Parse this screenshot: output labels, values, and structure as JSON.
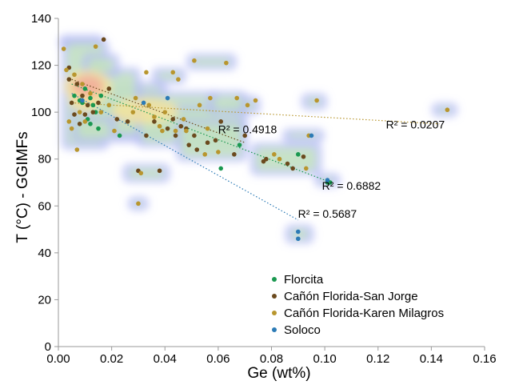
{
  "chart_data": {
    "type": "scatter",
    "title": "",
    "xlabel": "Ge (wt%)",
    "ylabel": "T (°C) - GGIMFs",
    "xlim": [
      0,
      0.16
    ],
    "ylim": [
      0,
      140
    ],
    "xticks": [
      0,
      0.02,
      0.04,
      0.06,
      0.08,
      0.1,
      0.12,
      0.14,
      0.16
    ],
    "xtick_labels": [
      "0.00",
      "0.02",
      "0.04",
      "0.06",
      "0.08",
      "0.10",
      "0.12",
      "0.14",
      "0.16"
    ],
    "yticks": [
      0,
      20,
      40,
      60,
      80,
      100,
      120,
      140
    ],
    "ytick_labels": [
      "0",
      "20",
      "40",
      "60",
      "80",
      "100",
      "120",
      "140"
    ],
    "grid": false,
    "legend_position": "bottom-right",
    "series": [
      {
        "name": "Florcita",
        "color": "#1a9850",
        "points": [
          [
            0.006,
            107
          ],
          [
            0.008,
            105
          ],
          [
            0.009,
            104
          ],
          [
            0.01,
            110
          ],
          [
            0.011,
            97
          ],
          [
            0.012,
            95
          ],
          [
            0.012,
            106
          ],
          [
            0.013,
            103
          ],
          [
            0.014,
            100
          ],
          [
            0.015,
            93
          ],
          [
            0.016,
            107
          ],
          [
            0.023,
            90
          ],
          [
            0.061,
            76
          ],
          [
            0.068,
            86
          ],
          [
            0.09,
            82
          ],
          [
            0.101,
            70
          ],
          [
            0.102,
            70
          ]
        ]
      },
      {
        "name": "Cañón Florida-San Jorge",
        "color": "#6b4a1e",
        "points": [
          [
            0.004,
            119
          ],
          [
            0.004,
            114
          ],
          [
            0.005,
            104
          ],
          [
            0.006,
            99
          ],
          [
            0.007,
            112
          ],
          [
            0.008,
            95
          ],
          [
            0.009,
            107
          ],
          [
            0.01,
            99
          ],
          [
            0.011,
            103
          ],
          [
            0.013,
            100
          ],
          [
            0.015,
            104
          ],
          [
            0.017,
            131
          ],
          [
            0.019,
            110
          ],
          [
            0.022,
            97
          ],
          [
            0.026,
            96
          ],
          [
            0.03,
            75
          ],
          [
            0.033,
            90
          ],
          [
            0.036,
            96
          ],
          [
            0.038,
            75
          ],
          [
            0.041,
            93
          ],
          [
            0.043,
            97
          ],
          [
            0.044,
            90
          ],
          [
            0.046,
            94
          ],
          [
            0.048,
            93
          ],
          [
            0.049,
            86
          ],
          [
            0.051,
            90
          ],
          [
            0.052,
            84
          ],
          [
            0.056,
            87
          ],
          [
            0.059,
            88
          ],
          [
            0.061,
            96
          ],
          [
            0.066,
            82
          ],
          [
            0.07,
            90
          ],
          [
            0.077,
            79
          ],
          [
            0.078,
            80
          ],
          [
            0.086,
            78
          ],
          [
            0.088,
            76
          ],
          [
            0.092,
            81
          ]
        ]
      },
      {
        "name": "Cañón Florida-Karen Milagros",
        "color": "#b8962e",
        "points": [
          [
            0.002,
            127
          ],
          [
            0.003,
            118
          ],
          [
            0.004,
            96
          ],
          [
            0.005,
            93
          ],
          [
            0.006,
            116
          ],
          [
            0.007,
            84
          ],
          [
            0.008,
            100
          ],
          [
            0.009,
            112
          ],
          [
            0.01,
            96
          ],
          [
            0.012,
            108
          ],
          [
            0.014,
            128
          ],
          [
            0.016,
            100
          ],
          [
            0.019,
            103
          ],
          [
            0.021,
            92
          ],
          [
            0.028,
            100
          ],
          [
            0.029,
            106
          ],
          [
            0.03,
            61
          ],
          [
            0.031,
            74
          ],
          [
            0.033,
            117
          ],
          [
            0.034,
            103
          ],
          [
            0.036,
            98
          ],
          [
            0.038,
            94
          ],
          [
            0.039,
            92
          ],
          [
            0.04,
            100
          ],
          [
            0.043,
            117
          ],
          [
            0.044,
            92
          ],
          [
            0.045,
            114
          ],
          [
            0.047,
            97
          ],
          [
            0.048,
            92
          ],
          [
            0.051,
            122
          ],
          [
            0.053,
            103
          ],
          [
            0.055,
            82
          ],
          [
            0.056,
            93
          ],
          [
            0.057,
            106
          ],
          [
            0.06,
            83
          ],
          [
            0.063,
            121
          ],
          [
            0.067,
            106
          ],
          [
            0.071,
            103
          ],
          [
            0.074,
            105
          ],
          [
            0.081,
            82
          ],
          [
            0.083,
            80
          ],
          [
            0.093,
            76
          ],
          [
            0.094,
            90
          ],
          [
            0.097,
            105
          ],
          [
            0.146,
            101
          ]
        ]
      },
      {
        "name": "Soloco",
        "color": "#2c7bb6",
        "points": [
          [
            0.009,
            105
          ],
          [
            0.032,
            104
          ],
          [
            0.041,
            106
          ],
          [
            0.09,
            49
          ],
          [
            0.09,
            46
          ],
          [
            0.095,
            90
          ],
          [
            0.101,
            71
          ]
        ]
      }
    ],
    "trendlines": [
      {
        "color": "#1a9850",
        "from": [
          0.005,
          112
        ],
        "to": [
          0.1,
          71
        ],
        "label": "R² = 0.6882"
      },
      {
        "color": "#6b4a1e",
        "from": [
          0.005,
          114
        ],
        "to": [
          0.07,
          87
        ],
        "label": "R² = 0.4918"
      },
      {
        "color": "#2c7bb6",
        "from": [
          0.005,
          108
        ],
        "to": [
          0.09,
          54
        ],
        "label": "R² = 0.5687"
      },
      {
        "color": "#b8962e",
        "from": [
          0.005,
          104
        ],
        "to": [
          0.143,
          95
        ],
        "label": "R² = 0.0207"
      }
    ],
    "density_regions": [
      [
        0.001,
        128,
        0.016,
        132
      ],
      [
        0.002,
        85,
        0.018,
        130
      ],
      [
        0.006,
        88,
        0.04,
        112
      ],
      [
        0.02,
        90,
        0.06,
        108
      ],
      [
        0.03,
        86,
        0.07,
        102
      ],
      [
        0.045,
        80,
        0.07,
        96
      ],
      [
        0.01,
        97,
        0.03,
        118
      ],
      [
        0.036,
        113,
        0.047,
        118
      ],
      [
        0.049,
        119,
        0.066,
        124
      ],
      [
        0.064,
        100,
        0.075,
        106
      ],
      [
        0.057,
        100,
        0.07,
        108
      ],
      [
        0.073,
        74,
        0.098,
        86
      ],
      [
        0.085,
        88,
        0.099,
        92
      ],
      [
        0.092,
        102,
        0.1,
        107
      ],
      [
        0.141,
        99,
        0.149,
        103
      ],
      [
        0.025,
        71,
        0.041,
        77
      ],
      [
        0.027,
        59,
        0.033,
        63
      ],
      [
        0.086,
        45,
        0.095,
        51
      ],
      [
        0.097,
        69,
        0.105,
        73
      ],
      [
        0.01,
        116,
        0.022,
        124
      ]
    ],
    "hot_regions": [
      [
        0.002,
        104,
        0.02,
        118
      ],
      [
        0.004,
        100,
        0.016,
        112
      ],
      [
        0.02,
        95,
        0.045,
        106
      ]
    ]
  }
}
